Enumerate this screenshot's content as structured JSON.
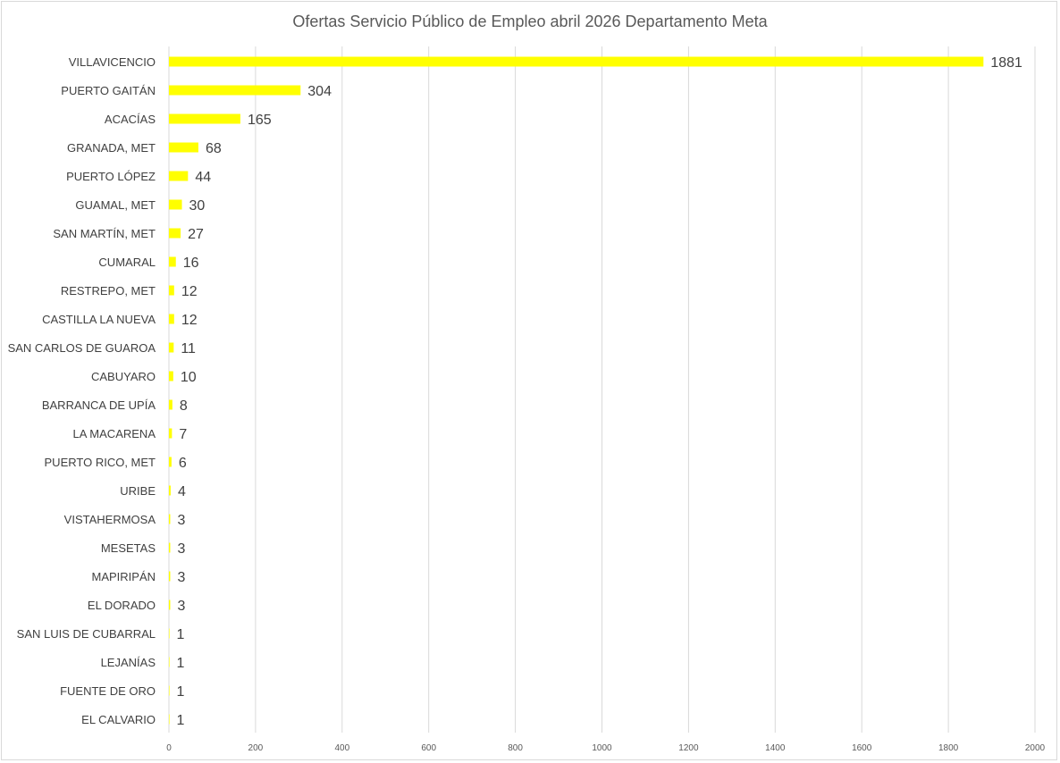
{
  "chart_data": {
    "type": "bar",
    "orientation": "horizontal",
    "title": "Ofertas Servicio Público de Empleo abril  2026 Departamento Meta",
    "categories": [
      "VILLAVICENCIO",
      "PUERTO GAITÁN",
      "ACACÍAS",
      "GRANADA, MET",
      "PUERTO LÓPEZ",
      "GUAMAL, MET",
      "SAN MARTÍN, MET",
      "CUMARAL",
      "RESTREPO, MET",
      "CASTILLA LA NUEVA",
      "SAN CARLOS DE GUAROA",
      "CABUYARO",
      "BARRANCA DE UPÍA",
      "LA MACARENA",
      "PUERTO RICO, MET",
      "URIBE",
      "VISTAHERMOSA",
      "MESETAS",
      "MAPIRIPÁN",
      "EL DORADO",
      "SAN LUIS DE CUBARRAL",
      "LEJANÍAS",
      "FUENTE DE ORO",
      "EL CALVARIO"
    ],
    "values": [
      1881,
      304,
      165,
      68,
      44,
      30,
      27,
      16,
      12,
      12,
      11,
      10,
      8,
      7,
      6,
      4,
      3,
      3,
      3,
      3,
      1,
      1,
      1,
      1
    ],
    "xlim": [
      0,
      2000
    ],
    "xticks": [
      0,
      200,
      400,
      600,
      800,
      1000,
      1200,
      1400,
      1600,
      1800,
      2000
    ],
    "xlabel": "",
    "ylabel": "",
    "grid": "vertical",
    "legend": "none",
    "data_labels": true,
    "bar_color": "#FFFF00",
    "grid_color": "#D9D9D9"
  }
}
